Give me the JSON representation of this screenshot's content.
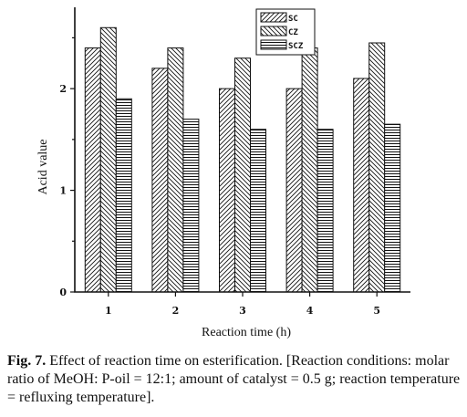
{
  "caption": {
    "label": "Fig. 7.",
    "text": " Effect of reaction time on esterification. [Reaction conditions: molar ratio of MeOH: P-oil = 12:1; amount of catalyst = 0.5 g; reaction temperature = refluxing temperature]."
  },
  "chart_data": {
    "type": "bar",
    "title": "",
    "xlabel": "Reaction time (h)",
    "ylabel": "Acid value",
    "categories": [
      "1",
      "2",
      "3",
      "4",
      "5"
    ],
    "series": [
      {
        "name": "SC",
        "values": [
          2.4,
          2.2,
          2.0,
          2.0,
          2.1
        ],
        "pattern": "diag-up"
      },
      {
        "name": "CZ",
        "values": [
          2.6,
          2.4,
          2.3,
          2.4,
          2.45
        ],
        "pattern": "diag-down"
      },
      {
        "name": "SCZ",
        "values": [
          1.9,
          1.7,
          1.6,
          1.6,
          1.65
        ],
        "pattern": "horizontal"
      }
    ],
    "yticks": [
      "0",
      "1",
      "2"
    ],
    "ylim": [
      0,
      2.8
    ],
    "grid": false,
    "legend_position": "top-right",
    "colors": {
      "axis": "#111111",
      "bar_fill": "#ffffff"
    }
  }
}
